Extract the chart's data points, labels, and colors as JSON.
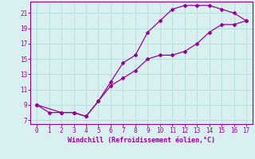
{
  "xlabel": "Windchill (Refroidissement éolien,°C)",
  "background_color": "#d8f0f0",
  "grid_color": "#b8dede",
  "line_color": "#990099",
  "xlim": [
    -0.5,
    17.5
  ],
  "ylim": [
    6.5,
    22.5
  ],
  "xticks": [
    0,
    1,
    2,
    3,
    4,
    5,
    6,
    7,
    8,
    9,
    10,
    11,
    12,
    13,
    14,
    15,
    16,
    17
  ],
  "yticks": [
    7,
    9,
    11,
    13,
    15,
    17,
    19,
    21
  ],
  "curve1_x": [
    0,
    1,
    2,
    3,
    4,
    5,
    6,
    7,
    8,
    9,
    10,
    11,
    12,
    13,
    14,
    15,
    16,
    17
  ],
  "curve1_y": [
    9,
    8,
    8,
    8,
    7.5,
    9.5,
    12,
    14.5,
    15.5,
    18.5,
    20,
    21.5,
    22,
    22,
    22,
    21.5,
    21,
    20
  ],
  "curve2_x": [
    0,
    2,
    3,
    4,
    5,
    6,
    7,
    8,
    9,
    10,
    11,
    12,
    13,
    14,
    15,
    16,
    17
  ],
  "curve2_y": [
    9,
    8,
    8,
    7.5,
    9.5,
    11.5,
    12.5,
    13.5,
    15,
    15.5,
    15.5,
    16,
    17,
    18.5,
    19.5,
    19.5,
    20
  ]
}
